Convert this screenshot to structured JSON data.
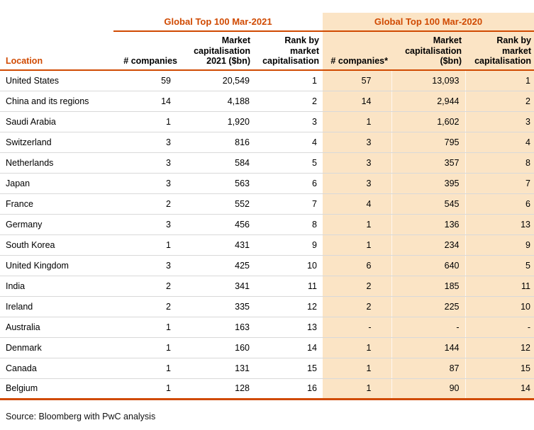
{
  "colors": {
    "accent": "#d04a02",
    "highlight_bg": "#fbe4c5",
    "row_divider": "#d9d9d9",
    "text": "#000000"
  },
  "groups": {
    "g2021": "Global Top 100 Mar-2021",
    "g2020": "Global Top 100 Mar-2020"
  },
  "columns": [
    "Location",
    "# companies",
    "Market capitalisation 2021 ($bn)",
    "Rank by market capitalisation",
    "# companies*",
    "Market capitalisation ($bn)",
    "Rank by market capitalisation"
  ],
  "rows": [
    [
      "United States",
      "59",
      "20,549",
      "1",
      "57",
      "13,093",
      "1"
    ],
    [
      "China and its regions",
      "14",
      "4,188",
      "2",
      "14",
      "2,944",
      "2"
    ],
    [
      "Saudi Arabia",
      "1",
      "1,920",
      "3",
      "1",
      "1,602",
      "3"
    ],
    [
      "Switzerland",
      "3",
      "816",
      "4",
      "3",
      "795",
      "4"
    ],
    [
      "Netherlands",
      "3",
      "584",
      "5",
      "3",
      "357",
      "8"
    ],
    [
      "Japan",
      "3",
      "563",
      "6",
      "3",
      "395",
      "7"
    ],
    [
      "France",
      "2",
      "552",
      "7",
      "4",
      "545",
      "6"
    ],
    [
      "Germany",
      "3",
      "456",
      "8",
      "1",
      "136",
      "13"
    ],
    [
      "South Korea",
      "1",
      "431",
      "9",
      "1",
      "234",
      "9"
    ],
    [
      "United Kingdom",
      "3",
      "425",
      "10",
      "6",
      "640",
      "5"
    ],
    [
      "India",
      "2",
      "341",
      "11",
      "2",
      "185",
      "11"
    ],
    [
      "Ireland",
      "2",
      "335",
      "12",
      "2",
      "225",
      "10"
    ],
    [
      "Australia",
      "1",
      "163",
      "13",
      "-",
      "-",
      "-"
    ],
    [
      "Denmark",
      "1",
      "160",
      "14",
      "1",
      "144",
      "12"
    ],
    [
      "Canada",
      "1",
      "131",
      "15",
      "1",
      "87",
      "15"
    ],
    [
      "Belgium",
      "1",
      "128",
      "16",
      "1",
      "90",
      "14"
    ]
  ],
  "source": "Source: Bloomberg with PwC analysis"
}
